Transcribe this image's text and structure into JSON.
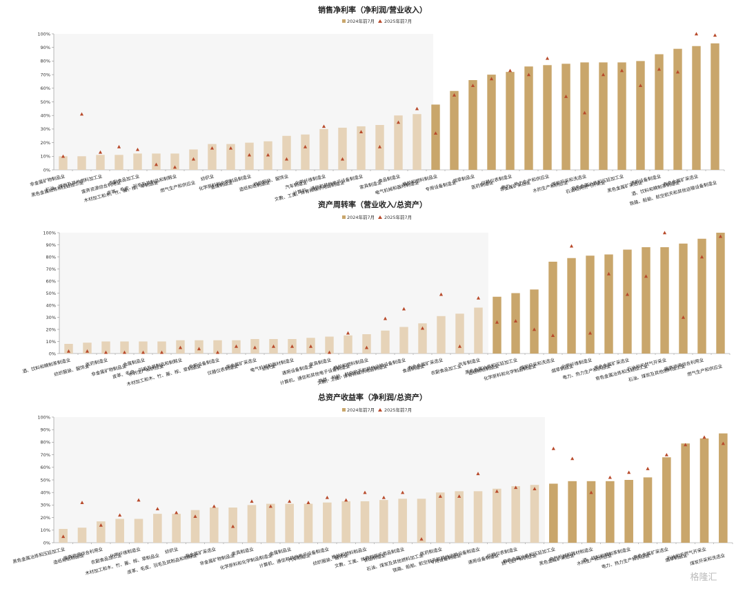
{
  "colors": {
    "bar_dark": "#C9A66B",
    "bar_light": "#E6D3B8",
    "marker": "#B84A2B",
    "highlight": "#F6F6F6"
  },
  "watermark": "格隆汇",
  "chart_data": [
    {
      "type": "bar",
      "title": "销售净利率（净利润/营业收入）",
      "legend": [
        "2024年前7月",
        "2025年前7月"
      ],
      "ylim": [
        0,
        100
      ],
      "yticks": [
        "0%",
        "10%",
        "20%",
        "30%",
        "40%",
        "50%",
        "60%",
        "70%",
        "80%",
        "90%",
        "100%"
      ],
      "light_count": 20,
      "categories": [
        "非金属矿物制品业",
        "黑色金属冶炼和压延加工业",
        "石油、煤炭及其他燃料加工业",
        "废弃资源综合利用业",
        "农副食品加工业",
        "木材加工和木、竹、藤、棕、草制品业",
        "皮革、毛皮、羽毛及其制品和制鞋业",
        "燃气生产和供应业",
        "纺织业",
        "金属制品业",
        "化学原料和化学制品制造业",
        "造纸和纸制品业",
        "纺织服装、服饰业",
        "汽车制造业",
        "化学纤维制造业",
        "文教、工美、体育和娱乐用品制造业",
        "计算机、通信和其他电子设备制造业",
        "家具制造业",
        "食品制造业",
        "电气机械和器材制造业",
        "橡胶和塑料制品业",
        "专用设备制造业",
        "烟草制品业",
        "医药制造业",
        "仪器仪表制造业",
        "非金属矿采选业",
        "电力、热力生产和供应业",
        "水的生产和供应业",
        "煤炭开采和洗选业",
        "石油和天然气开采业",
        "有色金属冶炼和压延加工业",
        "黑色金属矿采选业",
        "通用设备制造业",
        "酒、饮料和精制茶制造业",
        "有色金属矿采选业",
        "铁路、船舶、航空航天和其他运输设备制造业"
      ],
      "series": [
        {
          "name": "2024年前7月",
          "values": [
            10,
            10,
            11,
            11,
            12,
            12,
            12,
            15,
            19,
            19,
            20,
            21,
            25,
            26,
            30,
            31,
            32,
            33,
            40,
            41,
            48,
            58,
            66,
            70,
            72,
            76,
            77,
            78,
            79,
            79,
            79,
            80,
            85,
            89,
            91,
            93
          ]
        },
        {
          "name": "2025年前7月",
          "values": [
            10,
            41,
            13,
            17,
            15,
            4,
            2,
            8,
            16,
            16,
            11,
            11,
            8,
            17,
            32,
            8,
            28,
            17,
            35,
            45,
            27,
            55,
            62,
            67,
            73,
            70,
            82,
            54,
            42,
            70,
            73,
            62,
            74,
            72,
            100,
            99
          ]
        }
      ]
    },
    {
      "type": "bar",
      "title": "资产周转率（营业收入/总资产）",
      "legend": [
        "2024年前7月",
        "2025年前7月"
      ],
      "ylim": [
        0,
        100
      ],
      "yticks": [
        "0%",
        "10%",
        "20%",
        "30%",
        "40%",
        "50%",
        "60%",
        "70%",
        "80%",
        "90%",
        "100%"
      ],
      "light_count": 23,
      "categories": [
        "酒、饮料和精制茶制造业",
        "纺织服装、服饰业",
        "医药制造业",
        "非金属矿物制品业",
        "金属制品业",
        "水的生产和供应业",
        "皮革、毛皮、羽毛及其制品和制鞋业",
        "木材加工和木、竹、藤、棕、草制品业",
        "专用设备制造业",
        "仪器仪表制造业",
        "非金属矿采选业",
        "纺织业",
        "电气机械和器材制造业",
        "通用设备制造业",
        "家具制造业",
        "计算机、通信和其他电子设备制造业",
        "橡胶和塑料制品业",
        "文教、工美、体育和娱乐用品制造业",
        "铁路、船舶、航空航天和其他运输设备制造业",
        "食品制造业",
        "有色金属矿采选业",
        "农副食品加工业",
        "汽车制造业",
        "造纸和纸制品业",
        "黑色金属冶炼和压延加工业",
        "化学原料和化学制品制造业",
        "煤炭开采和洗选业",
        "烟草制品业",
        "化学纤维制造业",
        "电力、热力生产和供应业",
        "黑色金属矿采选业",
        "有色金属冶炼和压延加工业",
        "石油和天然气开采业",
        "石油、煤炭及其他燃料加工业",
        "废弃资源综合利用业",
        "燃气生产和供应业"
      ],
      "series": [
        {
          "name": "2024年前7月",
          "values": [
            8,
            9,
            10,
            10,
            10,
            10,
            11,
            11,
            11,
            11,
            12,
            12,
            12,
            13,
            14,
            15,
            16,
            19,
            22,
            25,
            31,
            33,
            38,
            47,
            50,
            53,
            76,
            79,
            81,
            82,
            86,
            88,
            88,
            91,
            95,
            100
          ]
        },
        {
          "name": "2025年前7月",
          "values": [
            2,
            2,
            1,
            1,
            1,
            1,
            5,
            4,
            1,
            6,
            5,
            6,
            6,
            6,
            1,
            17,
            5,
            29,
            37,
            21,
            49,
            6,
            46,
            26,
            27,
            20,
            15,
            89,
            17,
            66,
            49,
            64,
            100,
            30,
            80,
            97
          ]
        }
      ]
    },
    {
      "type": "bar",
      "title": "总资产收益率（净利润/总资产）",
      "legend": [
        "2024年前7月",
        "2025年前7月"
      ],
      "ylim": [
        0,
        100
      ],
      "yticks": [
        "0%",
        "10%",
        "20%",
        "30%",
        "40%",
        "50%",
        "60%",
        "70%",
        "80%",
        "90%",
        "100%"
      ],
      "light_count": 26,
      "categories": [
        "黑色金属冶炼和压延加工业",
        "造纸和纸制品业",
        "废弃资源综合利用业",
        "农副食品加工业",
        "化学纤维制造业",
        "木材加工和木、竹、藤、棕、草制品业",
        "纺织业",
        "皮革、毛皮、羽毛及其制品和制鞋业",
        "非金属矿采选业",
        "非金属矿物制品业",
        "家具制造业",
        "化学原料和化学制品制造业",
        "金属制品业",
        "汽车制造业",
        "计算机、通信和其他电子设备制造业",
        "纺织服装、服饰业",
        "橡胶和塑料制品业",
        "食品制造业",
        "文教、工美、体育和娱乐用品制造业",
        "石油、煤炭及其他燃料加工业",
        "医药制造业",
        "专用设备制造业",
        "铁路、船舶、航空航天和其他运输设备制造业",
        "通用设备制造业",
        "仪器仪表制造业",
        "燃气生产和供应业",
        "有色金属冶炼和压延加工业",
        "黑色金属矿采选业",
        "电气机械和器材制造业",
        "水的生产和供应业",
        "酒、饮料和精制茶制造业",
        "电力、热力生产和供应业",
        "有色金属矿采选业",
        "烟草制品业",
        "石油和天然气开采业",
        "煤炭开采和洗选业"
      ],
      "series": [
        {
          "name": "2024年前7月",
          "values": [
            11,
            12,
            17,
            19,
            19,
            23,
            23,
            26,
            28,
            28,
            30,
            31,
            31,
            31,
            32,
            33,
            33,
            34,
            35,
            35,
            40,
            41,
            41,
            43,
            45,
            46,
            47,
            49,
            49,
            49,
            50,
            52,
            68,
            79,
            83,
            87
          ]
        },
        {
          "name": "2025年前7月",
          "values": [
            5,
            32,
            14,
            22,
            34,
            27,
            24,
            21,
            29,
            13,
            33,
            29,
            33,
            32,
            36,
            34,
            40,
            36,
            40,
            3,
            37,
            37,
            55,
            41,
            44,
            43,
            75,
            67,
            40,
            52,
            56,
            59,
            70,
            78,
            84,
            79
          ]
        }
      ]
    }
  ]
}
